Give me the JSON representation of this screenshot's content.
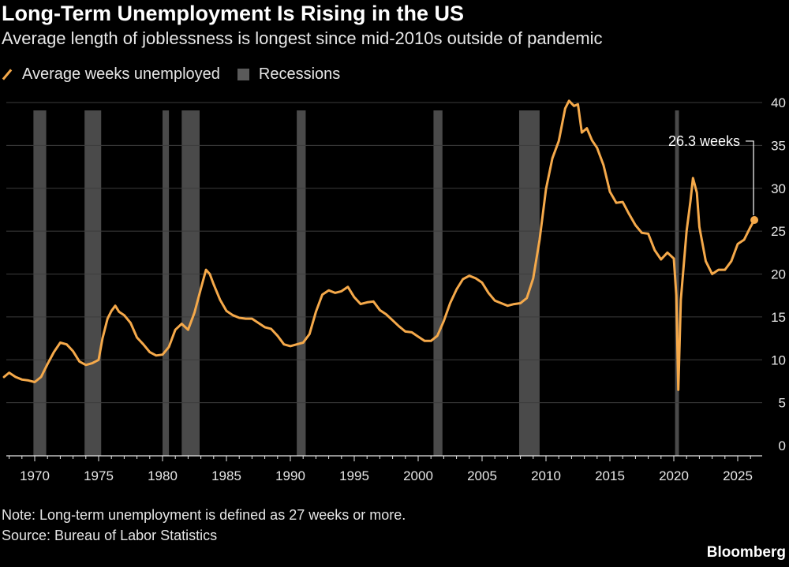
{
  "header": {
    "title": "Long-Term Unemployment Is Rising in the US",
    "subtitle": "Average length of joblessness is longest since mid-2010s outside of pandemic"
  },
  "legend": {
    "series_label": "Average weeks unemployed",
    "recession_label": "Recessions"
  },
  "footer": {
    "note": "Note: Long-term unemployment is defined as 27 weeks or more.",
    "source": "Source: Bureau of Labor Statistics",
    "brand": "Bloomberg"
  },
  "chart_data": {
    "type": "line",
    "title": "Long-Term Unemployment Is Rising in the US",
    "subtitle": "Average length of joblessness is longest since mid-2010s outside of pandemic",
    "xlim": [
      1967.5,
      2026.9
    ],
    "ylim": [
      0,
      40
    ],
    "x_ticks": [
      1970,
      1975,
      1980,
      1985,
      1990,
      1995,
      2000,
      2005,
      2010,
      2015,
      2020,
      2025
    ],
    "x_tick_labels": [
      "1970",
      "1975",
      "1980",
      "1985",
      "1990",
      "1995",
      "2000",
      "2005",
      "2010",
      "2015",
      "2020",
      "2025"
    ],
    "y_ticks": [
      0,
      5,
      10,
      15,
      20,
      25,
      30,
      35,
      40
    ],
    "y_tick_labels": [
      "0",
      "5",
      "10",
      "15",
      "20",
      "25",
      "30",
      "35",
      "40"
    ],
    "y_axis_side": "right",
    "grid": "horizontal",
    "legend_position": "top-left",
    "colors": {
      "series": "#f5a94a",
      "recession": "#4a4a4a",
      "grid": "#3d3d3d",
      "background": "#000000"
    },
    "recessions": [
      [
        1969.9,
        1970.9
      ],
      [
        1973.9,
        1975.2
      ],
      [
        1980.0,
        1980.5
      ],
      [
        1981.5,
        1982.9
      ],
      [
        1990.5,
        1991.2
      ],
      [
        2001.2,
        2001.9
      ],
      [
        2007.9,
        2009.5
      ],
      [
        2020.1,
        2020.4
      ]
    ],
    "series": [
      {
        "name": "Average weeks unemployed",
        "points": [
          [
            1967.6,
            8.0
          ],
          [
            1968.0,
            8.5
          ],
          [
            1968.5,
            8.0
          ],
          [
            1969.0,
            7.7
          ],
          [
            1969.5,
            7.6
          ],
          [
            1970.0,
            7.4
          ],
          [
            1970.5,
            8.0
          ],
          [
            1971.0,
            9.5
          ],
          [
            1971.5,
            10.9
          ],
          [
            1972.0,
            12.0
          ],
          [
            1972.5,
            11.8
          ],
          [
            1973.0,
            11.0
          ],
          [
            1973.5,
            9.8
          ],
          [
            1974.0,
            9.4
          ],
          [
            1974.5,
            9.6
          ],
          [
            1975.0,
            10.0
          ],
          [
            1975.3,
            12.5
          ],
          [
            1975.7,
            14.8
          ],
          [
            1976.0,
            15.7
          ],
          [
            1976.3,
            16.3
          ],
          [
            1976.6,
            15.6
          ],
          [
            1977.0,
            15.2
          ],
          [
            1977.5,
            14.3
          ],
          [
            1978.0,
            12.6
          ],
          [
            1978.5,
            11.8
          ],
          [
            1979.0,
            10.9
          ],
          [
            1979.5,
            10.5
          ],
          [
            1980.0,
            10.6
          ],
          [
            1980.5,
            11.5
          ],
          [
            1981.0,
            13.5
          ],
          [
            1981.5,
            14.2
          ],
          [
            1982.0,
            13.5
          ],
          [
            1982.5,
            15.5
          ],
          [
            1983.0,
            18.3
          ],
          [
            1983.4,
            20.5
          ],
          [
            1983.7,
            20.0
          ],
          [
            1984.0,
            18.8
          ],
          [
            1984.5,
            17.0
          ],
          [
            1985.0,
            15.7
          ],
          [
            1985.5,
            15.2
          ],
          [
            1986.0,
            14.9
          ],
          [
            1986.5,
            14.8
          ],
          [
            1987.0,
            14.8
          ],
          [
            1987.5,
            14.3
          ],
          [
            1988.0,
            13.8
          ],
          [
            1988.5,
            13.6
          ],
          [
            1989.0,
            12.8
          ],
          [
            1989.5,
            11.8
          ],
          [
            1990.0,
            11.6
          ],
          [
            1990.5,
            11.8
          ],
          [
            1991.0,
            12.0
          ],
          [
            1991.5,
            13.0
          ],
          [
            1992.0,
            15.6
          ],
          [
            1992.5,
            17.6
          ],
          [
            1993.0,
            18.1
          ],
          [
            1993.5,
            17.8
          ],
          [
            1994.0,
            18.0
          ],
          [
            1994.5,
            18.5
          ],
          [
            1995.0,
            17.3
          ],
          [
            1995.5,
            16.5
          ],
          [
            1996.0,
            16.7
          ],
          [
            1996.5,
            16.8
          ],
          [
            1997.0,
            15.8
          ],
          [
            1997.5,
            15.3
          ],
          [
            1998.0,
            14.6
          ],
          [
            1998.5,
            13.9
          ],
          [
            1999.0,
            13.3
          ],
          [
            1999.5,
            13.2
          ],
          [
            2000.0,
            12.7
          ],
          [
            2000.5,
            12.2
          ],
          [
            2001.0,
            12.2
          ],
          [
            2001.5,
            12.8
          ],
          [
            2002.0,
            14.5
          ],
          [
            2002.5,
            16.6
          ],
          [
            2003.0,
            18.2
          ],
          [
            2003.5,
            19.4
          ],
          [
            2004.0,
            19.8
          ],
          [
            2004.5,
            19.5
          ],
          [
            2005.0,
            19.0
          ],
          [
            2005.5,
            17.8
          ],
          [
            2006.0,
            16.9
          ],
          [
            2006.5,
            16.6
          ],
          [
            2007.0,
            16.3
          ],
          [
            2007.5,
            16.5
          ],
          [
            2008.0,
            16.6
          ],
          [
            2008.5,
            17.2
          ],
          [
            2009.0,
            19.5
          ],
          [
            2009.5,
            24.0
          ],
          [
            2010.0,
            29.9
          ],
          [
            2010.5,
            33.5
          ],
          [
            2011.0,
            35.5
          ],
          [
            2011.5,
            39.3
          ],
          [
            2011.8,
            40.2
          ],
          [
            2012.2,
            39.6
          ],
          [
            2012.5,
            39.8
          ],
          [
            2012.8,
            36.5
          ],
          [
            2013.2,
            37.0
          ],
          [
            2013.6,
            35.6
          ],
          [
            2014.0,
            34.7
          ],
          [
            2014.5,
            32.7
          ],
          [
            2015.0,
            29.6
          ],
          [
            2015.5,
            28.3
          ],
          [
            2016.0,
            28.4
          ],
          [
            2016.5,
            27.0
          ],
          [
            2017.0,
            25.7
          ],
          [
            2017.5,
            24.8
          ],
          [
            2018.0,
            24.7
          ],
          [
            2018.5,
            22.8
          ],
          [
            2019.0,
            21.7
          ],
          [
            2019.5,
            22.5
          ],
          [
            2020.0,
            21.8
          ],
          [
            2020.2,
            17.5
          ],
          [
            2020.35,
            6.5
          ],
          [
            2020.55,
            17.0
          ],
          [
            2021.0,
            25.0
          ],
          [
            2021.3,
            28.5
          ],
          [
            2021.5,
            31.2
          ],
          [
            2021.8,
            29.5
          ],
          [
            2022.0,
            25.5
          ],
          [
            2022.5,
            21.5
          ],
          [
            2023.0,
            20.0
          ],
          [
            2023.5,
            20.5
          ],
          [
            2024.0,
            20.5
          ],
          [
            2024.5,
            21.5
          ],
          [
            2025.0,
            23.5
          ],
          [
            2025.5,
            24.0
          ],
          [
            2026.0,
            25.5
          ],
          [
            2026.3,
            26.3
          ]
        ],
        "last_value": 26.3,
        "last_label": "26.3 weeks"
      }
    ]
  }
}
